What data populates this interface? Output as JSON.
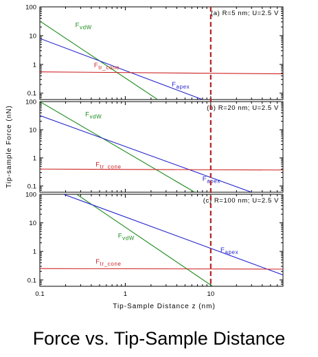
{
  "caption": "Force vs. Tip-Sample Distance",
  "chart_data": {
    "type": "line",
    "xlabel": "Tip-Sample Distance z (nm)",
    "ylabel": "Tip-sample Force (nN)",
    "xscale": "log",
    "yscale": "log",
    "xlim": [
      0.1,
      70
    ],
    "ylim": [
      0.06,
      100
    ],
    "x_ticks": [
      0.1,
      1,
      10
    ],
    "x_tick_labels": [
      "0.1",
      "1",
      "10"
    ],
    "y_ticks": [
      0.1,
      1,
      10,
      100
    ],
    "y_tick_labels": [
      "0.1",
      "1",
      "10",
      "100"
    ],
    "reference_line": {
      "x": 10,
      "color": "#b22222",
      "style": "dashed"
    },
    "colors": {
      "vdw": "#1a8a1a",
      "apex": "#2222cc",
      "cone": "#cc2222",
      "frame": "#000000"
    },
    "panels": [
      {
        "label": "(a) R=5 nm; U=2.5 V",
        "series": [
          {
            "name": "F_vdW",
            "color": "#1a8a1a",
            "x": [
              0.1,
              2.5
            ],
            "y": [
              32,
              0.055
            ]
          },
          {
            "name": "F_apex",
            "color": "#2222cc",
            "x": [
              0.1,
              8.0
            ],
            "y": [
              8,
              0.06
            ]
          },
          {
            "name": "F_tr_cone",
            "color": "#cc2222",
            "x": [
              0.1,
              70
            ],
            "y": [
              0.55,
              0.47
            ]
          }
        ],
        "labels": [
          {
            "series": "F_vdW",
            "base": "F",
            "sub": "vdW",
            "x": 0.26,
            "y": 20
          },
          {
            "series": "F_tr_cone",
            "base": "F",
            "sub": "tr_cone",
            "x": 0.43,
            "y": 0.8
          },
          {
            "series": "F_apex",
            "base": "F",
            "sub": "apex",
            "x": 3.5,
            "y": 0.17
          }
        ]
      },
      {
        "label": "(b) R=20 nm; U=2.5 V",
        "series": [
          {
            "name": "F_vdW",
            "color": "#1a8a1a",
            "x": [
              0.1,
              6.5
            ],
            "y": [
              100,
              0.06
            ]
          },
          {
            "name": "F_apex",
            "color": "#2222cc",
            "x": [
              0.1,
              30
            ],
            "y": [
              32,
              0.06
            ]
          },
          {
            "name": "F_tr_cone",
            "color": "#cc2222",
            "x": [
              0.1,
              70
            ],
            "y": [
              0.4,
              0.37
            ]
          }
        ],
        "labels": [
          {
            "series": "F_vdW",
            "base": "F",
            "sub": "vdW",
            "x": 0.34,
            "y": 30
          },
          {
            "series": "F_tr_cone",
            "base": "F",
            "sub": "tr_cone",
            "x": 0.45,
            "y": 0.5
          },
          {
            "series": "F_apex",
            "base": "F",
            "sub": "apex",
            "x": 8.0,
            "y": 0.15
          }
        ]
      },
      {
        "label": "(c) R=100 nm; U=2.5 V",
        "series": [
          {
            "name": "F_vdW",
            "color": "#1a8a1a",
            "x": [
              0.27,
              10.5
            ],
            "y": [
              100,
              0.06
            ]
          },
          {
            "name": "F_apex",
            "color": "#2222cc",
            "x": [
              0.19,
              70
            ],
            "y": [
              100,
              0.15
            ]
          },
          {
            "name": "F_tr_cone",
            "color": "#cc2222",
            "x": [
              0.1,
              70
            ],
            "y": [
              0.25,
              0.24
            ]
          }
        ],
        "labels": [
          {
            "series": "F_vdW",
            "base": "F",
            "sub": "vdW",
            "x": 0.82,
            "y": 3.0
          },
          {
            "series": "F_tr_cone",
            "base": "F",
            "sub": "tr_cone",
            "x": 0.45,
            "y": 0.37
          },
          {
            "series": "F_apex",
            "base": "F",
            "sub": "apex",
            "x": 13,
            "y": 0.95
          }
        ]
      }
    ]
  }
}
